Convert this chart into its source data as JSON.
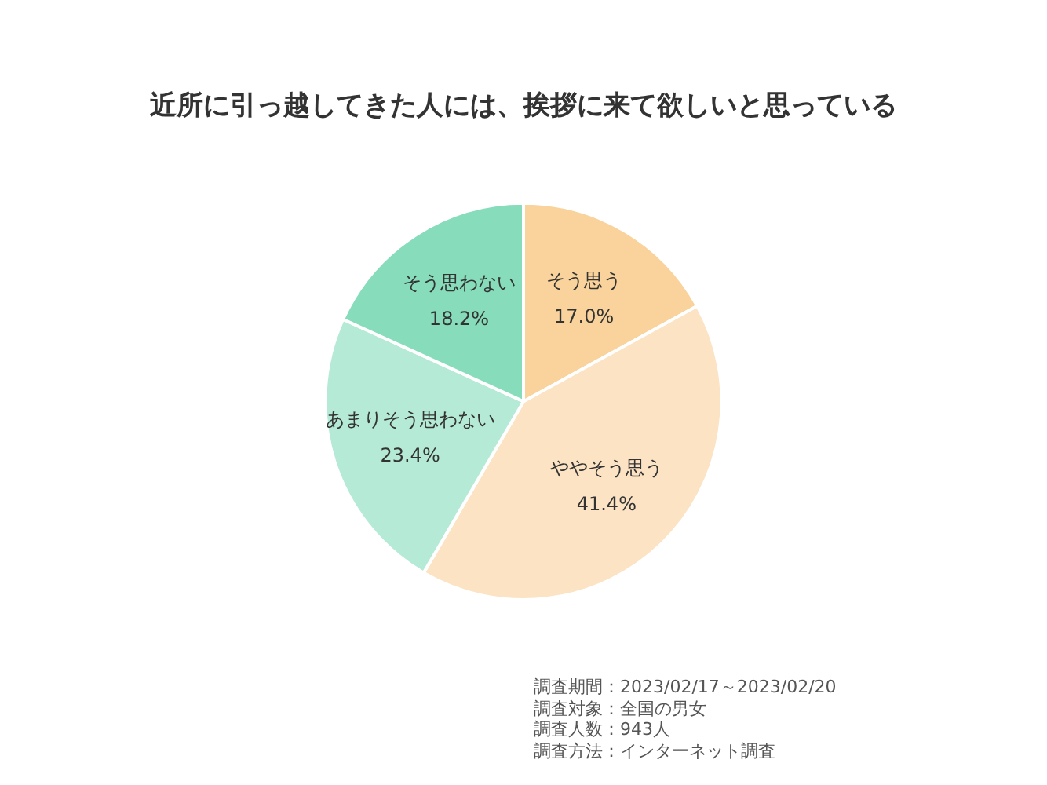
{
  "chart_data": {
    "type": "pie",
    "title": "近所に引っ越してきた人には、挨拶に来て欲しいと思っている",
    "categories": [
      "そう思う",
      "ややそう思う",
      "あまりそう思わない",
      "そう思わない"
    ],
    "values": [
      17.0,
      41.4,
      23.4,
      18.2
    ],
    "colors": [
      "#f9d39b",
      "#fbe3c4",
      "#b5ead6",
      "#86dcbb"
    ],
    "value_labels": [
      "17.0%",
      "41.4%",
      "23.4%",
      "18.2%"
    ],
    "legend": false,
    "annotations": [
      "調査期間：2023/02/17～2023/02/20",
      "調査対象：全国の男女",
      "調査人数：943人",
      "調査方法：インターネット調査"
    ]
  }
}
